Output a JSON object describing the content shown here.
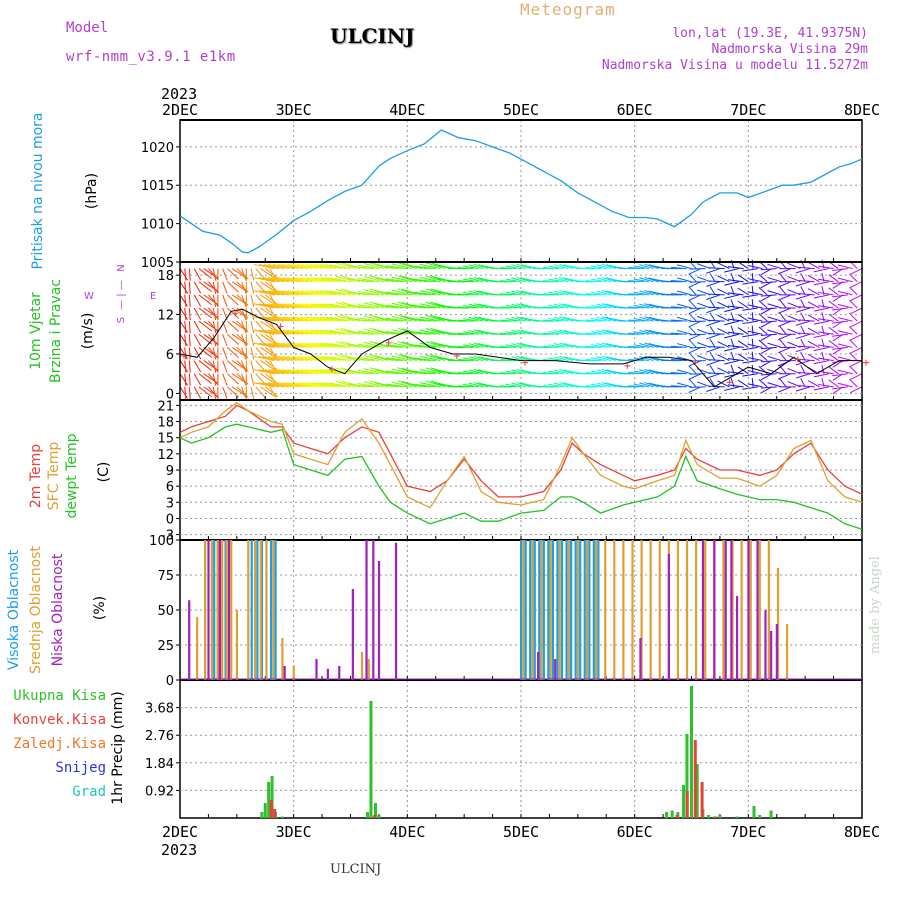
{
  "header": {
    "model_label": "Model",
    "model_name": "wrf-nmm_v3.9.1  e1km",
    "station": "ULCINJ",
    "meteogram": "Meteogram",
    "lonlat": "lon,lat (19.3E, 41.9375N)",
    "elevation": "Nadmorska Visina 29m",
    "model_elevation": "Nadmorska Visina u modelu 11.5272m",
    "footer_station": "ULCINJ",
    "credit": "made by Angel"
  },
  "colors": {
    "pressure": "#1a9ee8",
    "temp2m": "#e8413c",
    "sfc": "#e0a030",
    "dewpt": "#22c322",
    "high_cloud": "#1aa0e8",
    "mid_cloud": "#e0a030",
    "low_cloud": "#a020c0",
    "precip_total": "#2ec02e",
    "precip_conv": "#e8413c",
    "precip_frozen": "#f07828",
    "snow": "#3030e0",
    "hail": "#20c8c0",
    "purple_text": "#b040d0"
  },
  "time_axis": {
    "year": "2023",
    "labels": [
      "2DEC",
      "3DEC",
      "4DEC",
      "5DEC",
      "6DEC",
      "7DEC",
      "8DEC"
    ]
  },
  "wind_compass": {
    "n": "N",
    "w": "W",
    "e": "E",
    "s": "S"
  },
  "chart_data": [
    {
      "type": "line",
      "ylabel": "(hPa)",
      "side_label": "Pritisak na nivou mora",
      "yticks": [
        1005,
        1010,
        1015,
        1020
      ],
      "ylim": [
        1005,
        1023.5
      ],
      "series": [
        {
          "color_key": "pressure",
          "x": [
            0,
            0.1,
            0.2,
            0.35,
            0.45,
            0.55,
            0.6,
            0.7,
            0.85,
            1.0,
            1.15,
            1.3,
            1.45,
            1.6,
            1.75,
            1.85,
            2.0,
            2.15,
            2.3,
            2.45,
            2.6,
            2.75,
            2.9,
            3.05,
            3.2,
            3.35,
            3.5,
            3.65,
            3.8,
            3.95,
            4.1,
            4.2,
            4.35,
            4.5,
            4.6,
            4.75,
            4.9,
            5.0,
            5.15,
            5.3,
            5.4,
            5.55,
            5.7,
            5.8,
            5.9,
            6.0
          ],
          "y": [
            1011.0,
            1010.0,
            1009.0,
            1008.5,
            1007.5,
            1006.3,
            1006.2,
            1007.0,
            1008.6,
            1010.4,
            1011.6,
            1013.0,
            1014.2,
            1015.0,
            1017.5,
            1018.5,
            1019.5,
            1020.4,
            1022.2,
            1021.2,
            1020.8,
            1020.0,
            1019.2,
            1018.0,
            1016.8,
            1015.6,
            1014.0,
            1012.8,
            1011.6,
            1010.8,
            1010.8,
            1010.6,
            1009.6,
            1011.2,
            1012.8,
            1014.0,
            1014.0,
            1013.4,
            1014.2,
            1015.0,
            1015.0,
            1015.4,
            1016.6,
            1017.4,
            1017.8,
            1018.4
          ]
        }
      ]
    },
    {
      "type": "line",
      "ylabel": "(m/s)",
      "side_label": "10m Vjetar Brzina i Pravac",
      "yticks": [
        0,
        6,
        12,
        18
      ],
      "ylim": [
        -1,
        20
      ],
      "series": [
        {
          "color_key": "wind_speed",
          "x": [
            0,
            0.15,
            0.3,
            0.45,
            0.55,
            0.7,
            0.85,
            1.0,
            1.15,
            1.3,
            1.45,
            1.6,
            1.8,
            2.0,
            2.2,
            2.4,
            2.6,
            2.8,
            3.0,
            3.3,
            3.6,
            3.9,
            4.1,
            4.3,
            4.5,
            4.6,
            4.7,
            4.8,
            5.0,
            5.2,
            5.4,
            5.6,
            5.8,
            6.0
          ],
          "y": [
            6.0,
            5.5,
            8.5,
            12.5,
            12.8,
            11.5,
            10.5,
            7.0,
            6.0,
            4.0,
            3.0,
            6.0,
            8.0,
            9.5,
            7.0,
            6.0,
            6.0,
            5.5,
            5.0,
            5.0,
            4.5,
            4.5,
            5.5,
            5.5,
            5.0,
            3.0,
            1.0,
            2.0,
            4.0,
            3.0,
            5.5,
            3.0,
            5.0,
            5.0
          ]
        }
      ],
      "wind_vectors": {
        "bands": [
          1,
          3,
          5,
          7,
          9,
          11,
          13,
          15,
          17,
          19
        ],
        "step_hours": 1
      }
    },
    {
      "type": "line",
      "ylabel": "(C)",
      "side_labels": [
        "2m Temp",
        "SFC Temp",
        "dewpt Temp"
      ],
      "yticks": [
        -3,
        0,
        3,
        6,
        9,
        12,
        15,
        18,
        21
      ],
      "ylim": [
        -4,
        22
      ],
      "series": [
        {
          "name": "2m Temp",
          "color_key": "temp2m",
          "x": [
            0,
            0.1,
            0.25,
            0.4,
            0.5,
            0.6,
            0.8,
            0.9,
            1.0,
            1.15,
            1.3,
            1.45,
            1.6,
            1.75,
            1.85,
            2.0,
            2.2,
            2.35,
            2.5,
            2.65,
            2.8,
            3.0,
            3.2,
            3.35,
            3.45,
            3.55,
            3.7,
            3.9,
            4.0,
            4.2,
            4.35,
            4.45,
            4.55,
            4.75,
            4.9,
            5.1,
            5.25,
            5.4,
            5.55,
            5.7,
            5.85,
            6.0
          ],
          "y": [
            16,
            17,
            18,
            19,
            21,
            20,
            17,
            17,
            14,
            13,
            12,
            15,
            17,
            16,
            12,
            6,
            5,
            7,
            11,
            7,
            4,
            4,
            5,
            9,
            14,
            12,
            10,
            8,
            7,
            8,
            9,
            13,
            11,
            9,
            9,
            8,
            9,
            12,
            14,
            9,
            6,
            4.5
          ]
        },
        {
          "name": "SFC Temp",
          "color_key": "sfc",
          "x": [
            0,
            0.1,
            0.25,
            0.4,
            0.5,
            0.6,
            0.8,
            0.9,
            1.0,
            1.15,
            1.3,
            1.45,
            1.6,
            1.75,
            1.85,
            2.0,
            2.2,
            2.35,
            2.5,
            2.65,
            2.8,
            3.0,
            3.2,
            3.35,
            3.45,
            3.55,
            3.7,
            3.9,
            4.0,
            4.2,
            4.35,
            4.45,
            4.55,
            4.75,
            4.9,
            5.1,
            5.25,
            5.4,
            5.55,
            5.7,
            5.85,
            6.0
          ],
          "y": [
            15,
            16,
            17,
            20,
            21.5,
            20,
            18,
            17.5,
            12,
            11,
            10,
            16,
            18.5,
            14,
            10,
            4,
            2,
            7,
            11.5,
            5,
            3,
            2.5,
            3.5,
            10,
            15,
            12,
            8,
            6,
            5.5,
            7,
            8,
            14.5,
            10,
            7.5,
            7.5,
            6,
            8,
            13,
            14.5,
            7,
            4,
            3
          ]
        },
        {
          "name": "dewpt Temp",
          "color_key": "dewpt",
          "x": [
            0,
            0.1,
            0.25,
            0.4,
            0.5,
            0.6,
            0.8,
            0.9,
            1.0,
            1.15,
            1.3,
            1.45,
            1.6,
            1.75,
            1.85,
            2.0,
            2.2,
            2.35,
            2.5,
            2.65,
            2.8,
            3.0,
            3.2,
            3.35,
            3.45,
            3.55,
            3.7,
            3.9,
            4.0,
            4.2,
            4.35,
            4.45,
            4.55,
            4.75,
            4.9,
            5.1,
            5.25,
            5.4,
            5.55,
            5.7,
            5.85,
            6.0
          ],
          "y": [
            15,
            14,
            15,
            17,
            17.5,
            17,
            16,
            16.5,
            10,
            9,
            8,
            11,
            11.5,
            6,
            3,
            1,
            -1,
            0,
            1,
            -0.5,
            -0.5,
            1,
            1.5,
            4,
            4,
            3,
            1,
            2.5,
            3,
            4,
            6,
            11.5,
            7,
            5.5,
            4.5,
            3.5,
            3.5,
            3,
            2,
            1,
            -1,
            -2
          ]
        }
      ]
    },
    {
      "type": "bar",
      "ylabel": "(%)",
      "side_labels": [
        "Visoka Oblacnost",
        "Srednja Oblacnost",
        "Niska Oblacnost"
      ],
      "yticks": [
        0,
        25,
        50,
        75,
        100
      ],
      "ylim": [
        0,
        100
      ],
      "series": [
        {
          "name": "Visoka Oblacnost",
          "color_key": "high_cloud",
          "x": [
            0.3,
            0.34,
            0.4,
            0.63,
            0.68,
            0.72,
            0.8,
            0.84,
            3.0,
            3.04,
            3.08,
            3.12,
            3.16,
            3.2,
            3.24,
            3.28,
            3.32,
            3.36,
            3.4,
            3.44,
            3.48,
            3.52,
            3.56,
            3.6,
            3.64,
            3.68
          ],
          "y": [
            100,
            100,
            100,
            100,
            100,
            100,
            100,
            100,
            100,
            100,
            100,
            100,
            100,
            100,
            100,
            100,
            100,
            100,
            100,
            100,
            100,
            100,
            100,
            100,
            100,
            100
          ]
        },
        {
          "name": "Srednja Oblacnost",
          "color_key": "mid_cloud",
          "x": [
            0.15,
            0.22,
            0.28,
            0.33,
            0.37,
            0.41,
            0.45,
            0.5,
            0.6,
            0.66,
            0.71,
            0.76,
            0.82,
            0.9,
            1.0,
            1.6,
            1.66,
            3.02,
            3.1,
            3.18,
            3.26,
            3.34,
            3.42,
            3.5,
            3.58,
            3.66,
            3.74,
            3.82,
            3.9,
            3.98,
            4.06,
            4.14,
            4.22,
            4.3,
            4.38,
            4.46,
            4.54,
            4.62,
            4.7,
            4.78,
            4.86,
            4.94,
            5.02,
            5.1,
            5.18,
            5.26,
            5.34
          ],
          "y": [
            45,
            100,
            100,
            100,
            100,
            100,
            100,
            50,
            100,
            100,
            100,
            100,
            100,
            30,
            10,
            20,
            15,
            100,
            100,
            100,
            100,
            100,
            100,
            100,
            100,
            100,
            100,
            100,
            100,
            100,
            100,
            100,
            100,
            100,
            100,
            100,
            100,
            100,
            100,
            100,
            100,
            100,
            100,
            100,
            100,
            80,
            40
          ]
        },
        {
          "name": "Niska Oblacnost",
          "color_key": "low_cloud",
          "x": [
            0.08,
            0.25,
            0.35,
            0.43,
            0.92,
            1.2,
            1.3,
            1.4,
            1.52,
            1.64,
            1.7,
            1.75,
            1.9,
            3.15,
            3.3,
            4.05,
            4.3,
            4.6,
            4.7,
            4.8,
            4.85,
            4.9,
            5.0,
            5.08,
            5.15,
            5.2,
            5.25
          ],
          "y": [
            57,
            100,
            100,
            100,
            10,
            15,
            8,
            10,
            65,
            100,
            100,
            85,
            98,
            20,
            15,
            30,
            90,
            100,
            100,
            100,
            100,
            60,
            100,
            100,
            50,
            35,
            40
          ]
        }
      ]
    },
    {
      "type": "bar",
      "ylabel": "1hr Precip (mm)",
      "side_labels": [
        "Ukupna Kisa",
        "Konvek.Kisa",
        "Zaledj.Kisa",
        "Snijeg",
        "Grad"
      ],
      "yticks": [
        0.92,
        1.84,
        2.76,
        3.68
      ],
      "ylim": [
        0,
        4.6
      ],
      "series": [
        {
          "name": "Ukupna Kisa",
          "color_key": "precip_total",
          "x": [
            0.72,
            0.75,
            0.78,
            0.81,
            0.84,
            0.9,
            1.65,
            1.68,
            1.72,
            1.75,
            4.28,
            4.33,
            4.38,
            4.43,
            4.46,
            4.5,
            4.55,
            4.6,
            4.65,
            4.7,
            4.75,
            4.9,
            5.05,
            5.1,
            5.2
          ],
          "y": [
            0.2,
            0.5,
            1.2,
            1.4,
            0.2,
            0.05,
            0.2,
            3.9,
            0.5,
            0.1,
            0.2,
            0.25,
            0.2,
            1.1,
            2.8,
            4.4,
            1.8,
            0.3,
            0.1,
            0.05,
            0.1,
            0.05,
            0.4,
            0.1,
            0.25
          ]
        },
        {
          "name": "Konvek.Kisa",
          "color_key": "precip_conv",
          "x": [
            0.79,
            0.82,
            1.7,
            4.36,
            4.45,
            4.52,
            4.58,
            4.7
          ],
          "y": [
            0.6,
            0.3,
            0.1,
            0.1,
            0.9,
            2.6,
            1.2,
            0.05
          ]
        }
      ]
    }
  ]
}
